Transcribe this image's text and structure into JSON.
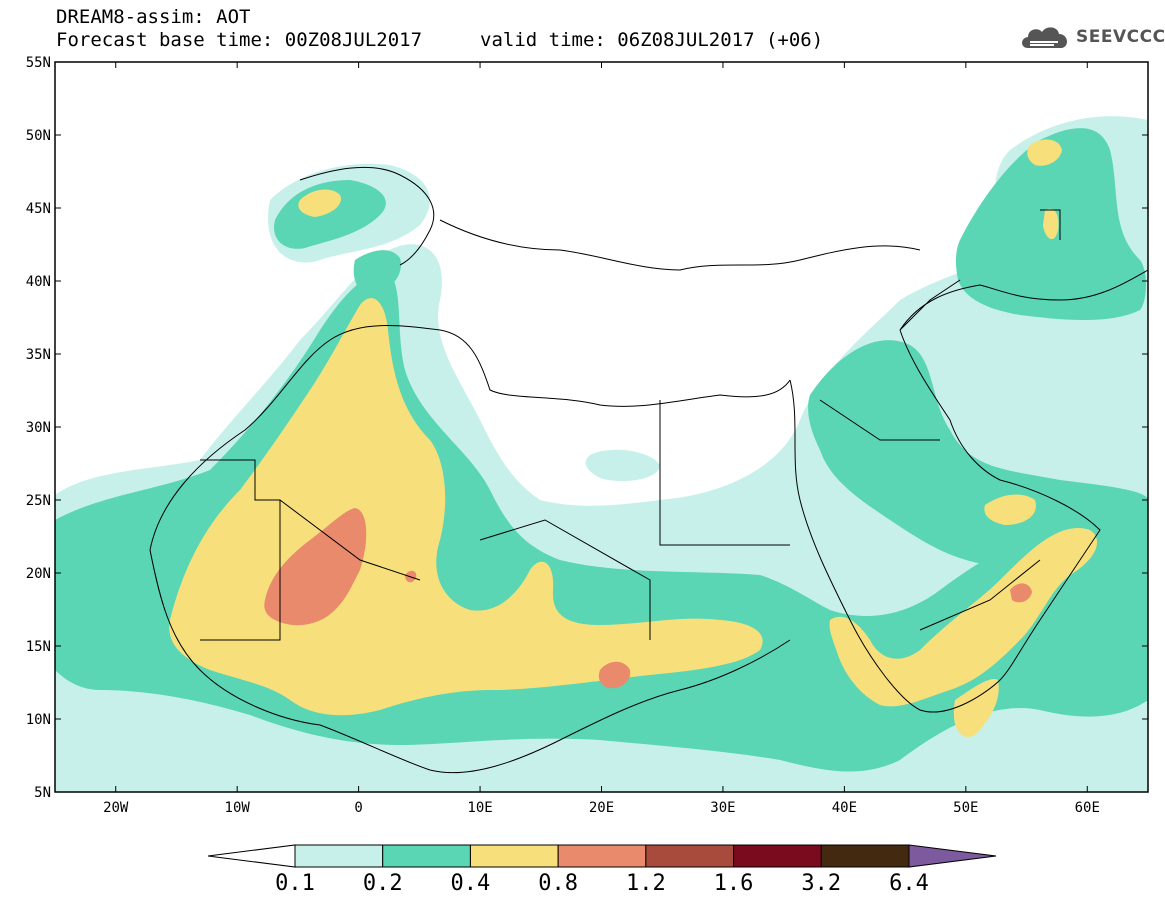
{
  "header": {
    "title_line1": "DREAM8-assim: AOT",
    "title_line2": "Forecast base time: 00Z08JUL2017",
    "valid_time": "valid time: 06Z08JUL2017 (+06)",
    "logo_text": "SEEVCCC",
    "logo_icon": "cloud-icon"
  },
  "map": {
    "lon_range": [
      -25,
      65
    ],
    "lat_range": [
      5,
      55
    ],
    "lat_ticks": [
      {
        "value": 55,
        "label": "55N"
      },
      {
        "value": 50,
        "label": "50N"
      },
      {
        "value": 45,
        "label": "45N"
      },
      {
        "value": 40,
        "label": "40N"
      },
      {
        "value": 35,
        "label": "35N"
      },
      {
        "value": 30,
        "label": "30N"
      },
      {
        "value": 25,
        "label": "25N"
      },
      {
        "value": 20,
        "label": "20N"
      },
      {
        "value": 15,
        "label": "15N"
      },
      {
        "value": 10,
        "label": "10N"
      },
      {
        "value": 5,
        "label": "5N"
      }
    ],
    "lon_ticks": [
      {
        "value": -20,
        "label": "20W"
      },
      {
        "value": -10,
        "label": "10W"
      },
      {
        "value": 0,
        "label": "0"
      },
      {
        "value": 10,
        "label": "10E"
      },
      {
        "value": 20,
        "label": "20E"
      },
      {
        "value": 30,
        "label": "30E"
      },
      {
        "value": 40,
        "label": "40E"
      },
      {
        "value": 50,
        "label": "50E"
      },
      {
        "value": 60,
        "label": "60E"
      }
    ],
    "colors": {
      "0.1": "#c8f0ea",
      "0.2": "#5ad6b4",
      "0.4": "#f7e07c",
      "0.8": "#ea8a6c",
      "1.2": "#a84a3c",
      "1.6": "#7a0a1e",
      "3.2": "#43290f",
      "6.4": "#7d5a9e"
    }
  },
  "colorbar": {
    "labels": [
      "0.1",
      "0.2",
      "0.4",
      "0.8",
      "1.2",
      "1.6",
      "3.2",
      "6.4"
    ],
    "colors": [
      "#ffffff",
      "#c8f0ea",
      "#5ad6b4",
      "#f7e07c",
      "#ea8a6c",
      "#a84a3c",
      "#7a0a1e",
      "#43290f",
      "#7d5a9e"
    ]
  }
}
